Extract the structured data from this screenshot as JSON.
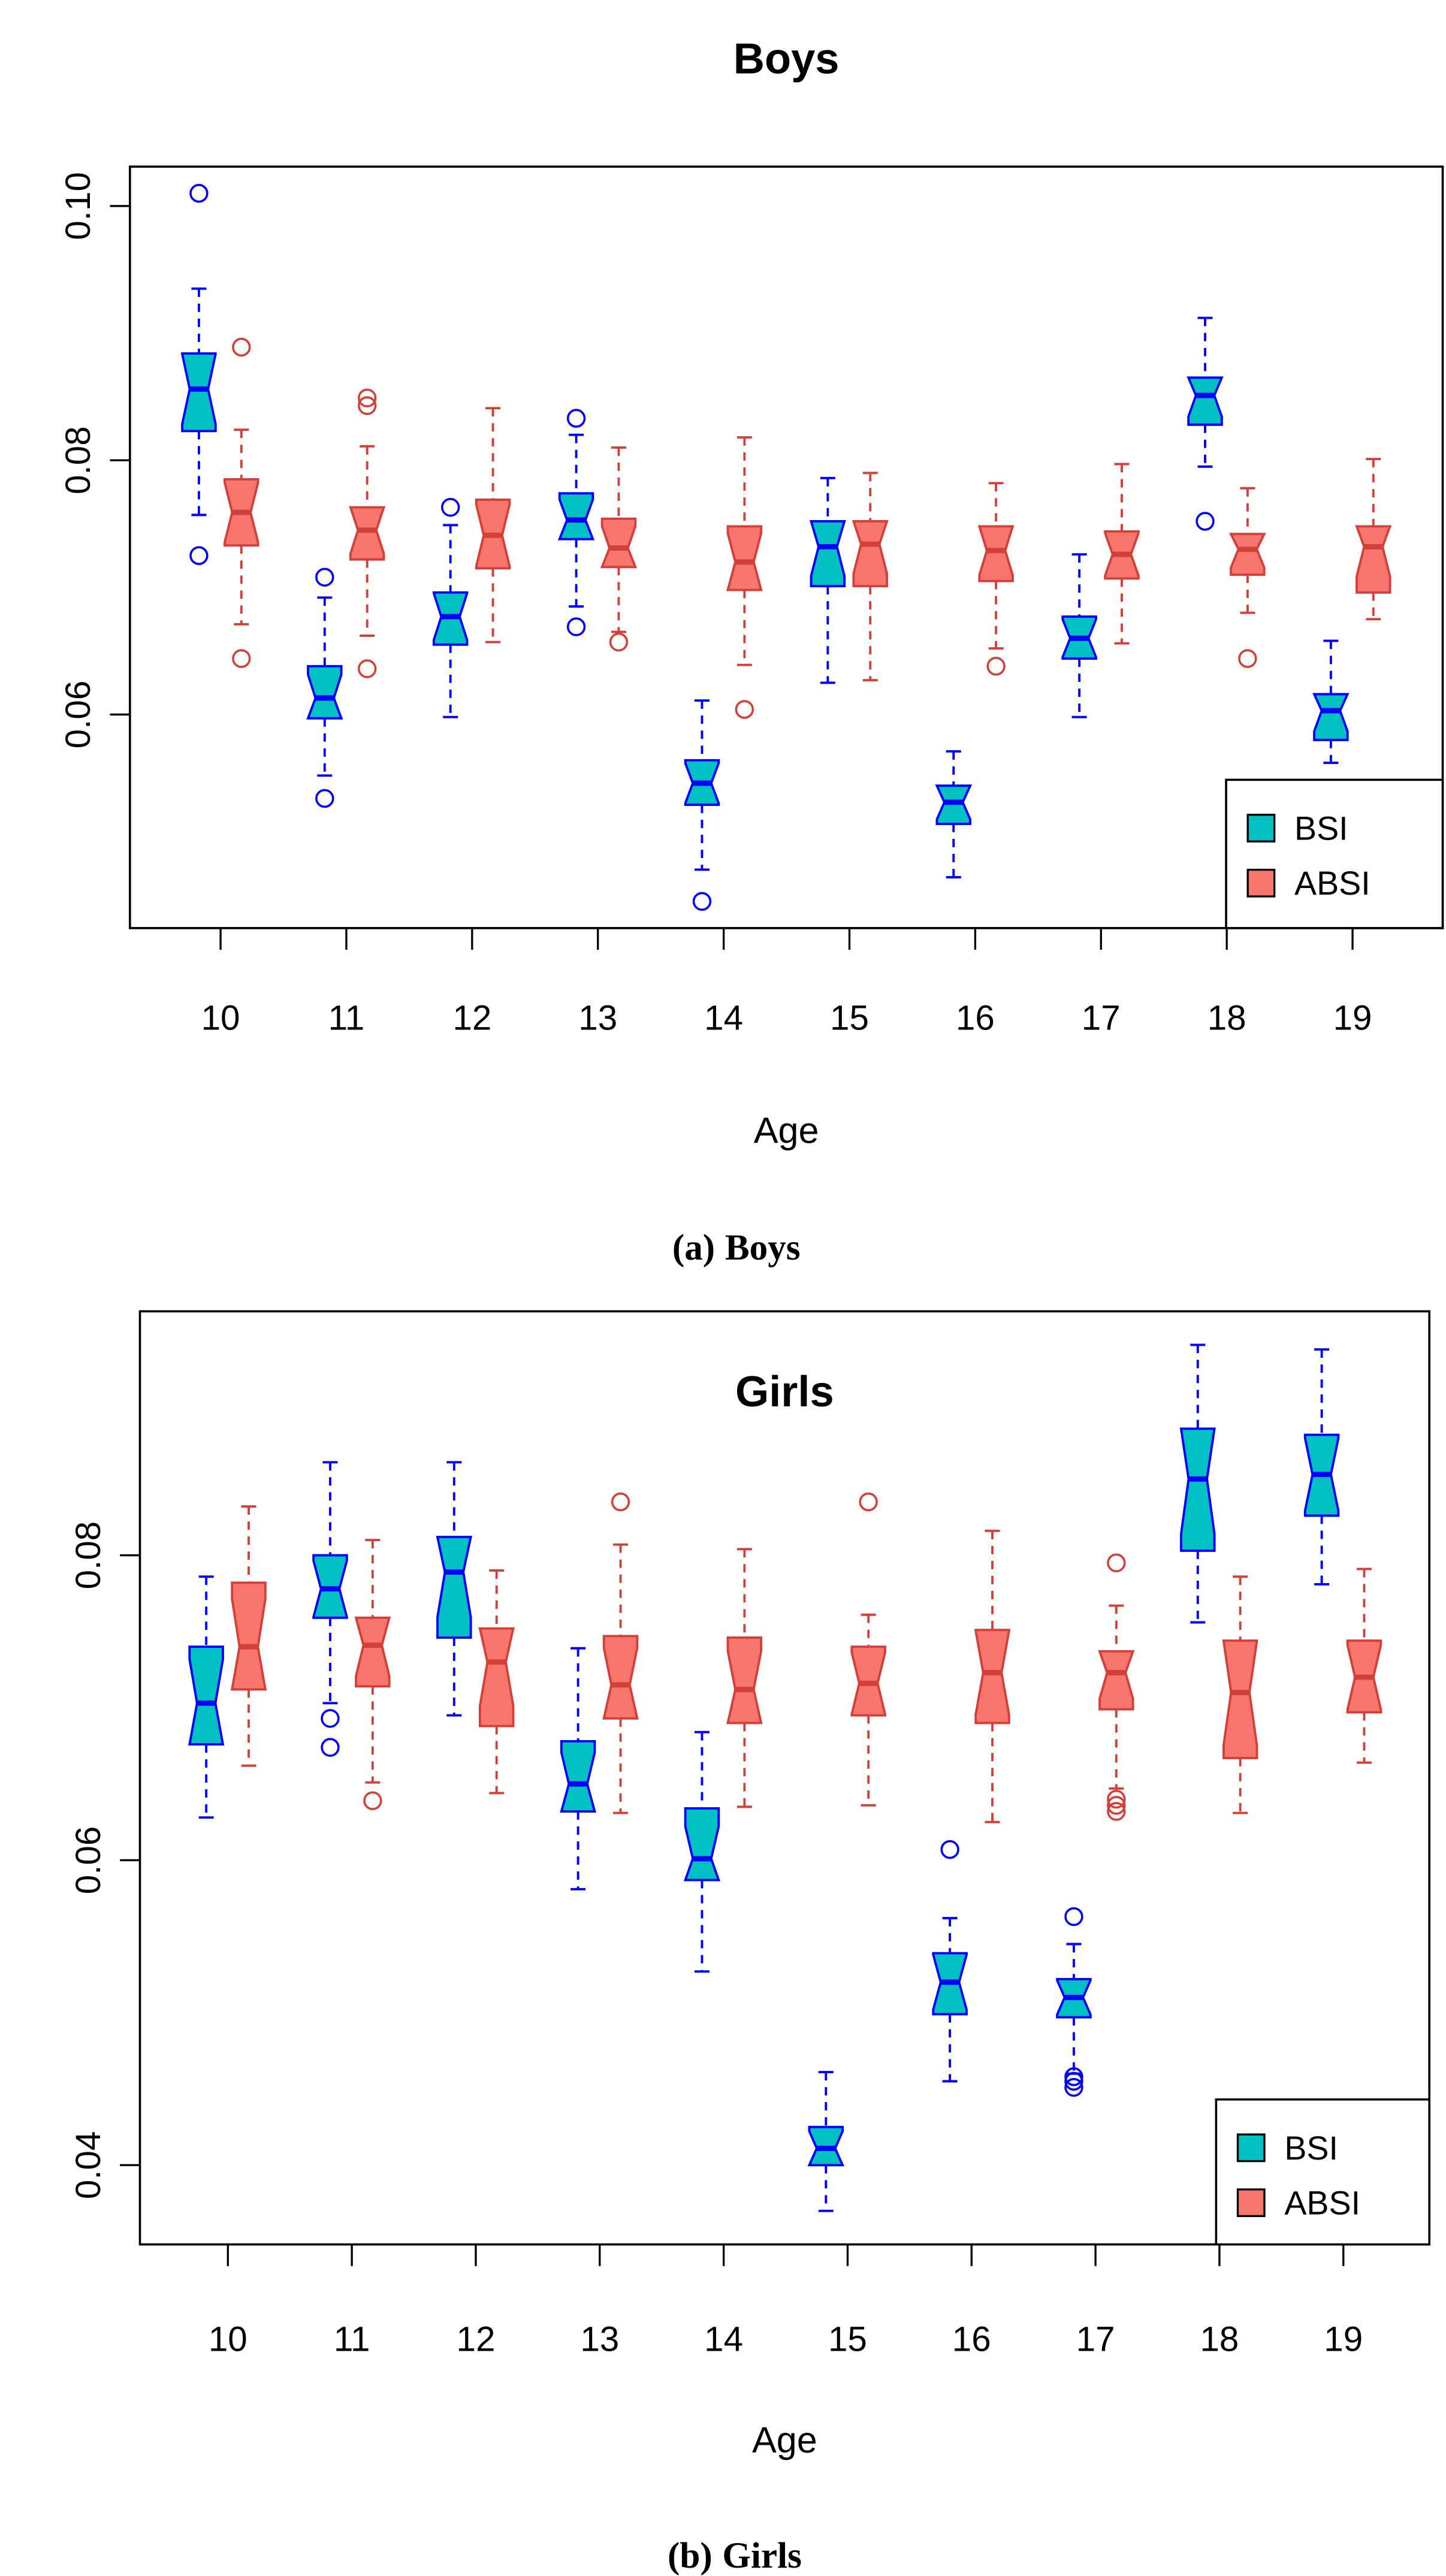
{
  "colors": {
    "bsi_fill": "#00C0C2",
    "bsi_line": "#0000FF",
    "absi_fill": "#F8766D",
    "absi_line": "#D2403A"
  },
  "chart_data": [
    {
      "type": "box",
      "title": "Boys",
      "caption_prefix": "(a)",
      "caption_text": "Boys",
      "xlabel": "Age",
      "ylabel": "",
      "ylim": [
        0.0432,
        0.1031
      ],
      "yticks": [
        "0.06",
        "0.08",
        "0.10"
      ],
      "categories": [
        "10",
        "11",
        "12",
        "13",
        "14",
        "15",
        "16",
        "17",
        "18",
        "19"
      ],
      "legend": {
        "position": "bottom-right",
        "entries": [
          "BSI",
          "ABSI"
        ]
      },
      "series": [
        {
          "name": "BSI",
          "boxes": [
            {
              "low": 0.0757,
              "q1": 0.0823,
              "median": 0.0856,
              "q3": 0.0884,
              "high": 0.0935,
              "outliers": [
                0.101,
                0.0725
              ]
            },
            {
              "low": 0.0552,
              "q1": 0.0597,
              "median": 0.0613,
              "q3": 0.0638,
              "high": 0.0692,
              "outliers": [
                0.0708,
                0.0534
              ]
            },
            {
              "low": 0.0598,
              "q1": 0.0655,
              "median": 0.0677,
              "q3": 0.0696,
              "high": 0.0749,
              "outliers": [
                0.0763
              ]
            },
            {
              "low": 0.0685,
              "q1": 0.0738,
              "median": 0.0753,
              "q3": 0.0774,
              "high": 0.082,
              "outliers": [
                0.0833,
                0.0669
              ]
            },
            {
              "low": 0.0478,
              "q1": 0.0529,
              "median": 0.0546,
              "q3": 0.0564,
              "high": 0.0611,
              "outliers": [
                0.0453
              ]
            },
            {
              "low": 0.0625,
              "q1": 0.0701,
              "median": 0.0732,
              "q3": 0.0752,
              "high": 0.0786,
              "outliers": []
            },
            {
              "low": 0.0472,
              "q1": 0.0514,
              "median": 0.0531,
              "q3": 0.0544,
              "high": 0.0571,
              "outliers": []
            },
            {
              "low": 0.0598,
              "q1": 0.0644,
              "median": 0.066,
              "q3": 0.0677,
              "high": 0.0726,
              "outliers": []
            },
            {
              "low": 0.0795,
              "q1": 0.0828,
              "median": 0.0851,
              "q3": 0.0865,
              "high": 0.0912,
              "outliers": [
                0.0752
              ]
            },
            {
              "low": 0.0562,
              "q1": 0.058,
              "median": 0.0603,
              "q3": 0.0616,
              "high": 0.0658,
              "outliers": []
            }
          ]
        },
        {
          "name": "ABSI",
          "boxes": [
            {
              "low": 0.0671,
              "q1": 0.0733,
              "median": 0.0759,
              "q3": 0.0785,
              "high": 0.0824,
              "outliers": [
                0.0889,
                0.0644
              ]
            },
            {
              "low": 0.0662,
              "q1": 0.0722,
              "median": 0.0745,
              "q3": 0.0763,
              "high": 0.0811,
              "outliers": [
                0.0849,
                0.0843,
                0.0636
              ]
            },
            {
              "low": 0.0657,
              "q1": 0.0715,
              "median": 0.0741,
              "q3": 0.0769,
              "high": 0.0841,
              "outliers": []
            },
            {
              "low": 0.0665,
              "q1": 0.0716,
              "median": 0.0731,
              "q3": 0.0754,
              "high": 0.081,
              "outliers": [
                0.0657
              ]
            },
            {
              "low": 0.0639,
              "q1": 0.0698,
              "median": 0.072,
              "q3": 0.0748,
              "high": 0.0818,
              "outliers": [
                0.0604
              ]
            },
            {
              "low": 0.0627,
              "q1": 0.0701,
              "median": 0.0734,
              "q3": 0.0752,
              "high": 0.079,
              "outliers": []
            },
            {
              "low": 0.0652,
              "q1": 0.0705,
              "median": 0.0729,
              "q3": 0.0748,
              "high": 0.0782,
              "outliers": [
                0.0638
              ]
            },
            {
              "low": 0.0656,
              "q1": 0.0707,
              "median": 0.0726,
              "q3": 0.0744,
              "high": 0.0797,
              "outliers": []
            },
            {
              "low": 0.068,
              "q1": 0.071,
              "median": 0.073,
              "q3": 0.0742,
              "high": 0.0778,
              "outliers": [
                0.0644
              ]
            },
            {
              "low": 0.0675,
              "q1": 0.0696,
              "median": 0.0732,
              "q3": 0.0748,
              "high": 0.0801,
              "outliers": []
            }
          ]
        }
      ]
    },
    {
      "type": "box",
      "title": "Girls",
      "caption_prefix": "(b)",
      "caption_text": "Girls",
      "xlabel": "Age",
      "ylabel": "",
      "ylim": [
        0.0348,
        0.096
      ],
      "yticks": [
        "0.04",
        "0.06",
        "0.08"
      ],
      "categories": [
        "10",
        "11",
        "12",
        "13",
        "14",
        "15",
        "16",
        "17",
        "18",
        "19"
      ],
      "legend": {
        "position": "bottom-right",
        "entries": [
          "BSI",
          "ABSI"
        ]
      },
      "series": [
        {
          "name": "BSI",
          "boxes": [
            {
              "low": 0.0628,
              "q1": 0.0676,
              "median": 0.0703,
              "q3": 0.074,
              "high": 0.0786,
              "outliers": []
            },
            {
              "low": 0.0703,
              "q1": 0.0759,
              "median": 0.0778,
              "q3": 0.08,
              "high": 0.0861,
              "outliers": [
                0.0693,
                0.0674
              ]
            },
            {
              "low": 0.0695,
              "q1": 0.0746,
              "median": 0.0789,
              "q3": 0.0812,
              "high": 0.0861,
              "outliers": []
            },
            {
              "low": 0.0581,
              "q1": 0.0632,
              "median": 0.065,
              "q3": 0.0678,
              "high": 0.0739,
              "outliers": []
            },
            {
              "low": 0.0527,
              "q1": 0.0587,
              "median": 0.0601,
              "q3": 0.0634,
              "high": 0.0684,
              "outliers": []
            },
            {
              "low": 0.037,
              "q1": 0.04,
              "median": 0.0411,
              "q3": 0.0425,
              "high": 0.0461,
              "outliers": []
            },
            {
              "low": 0.0455,
              "q1": 0.0499,
              "median": 0.052,
              "q3": 0.0539,
              "high": 0.0562,
              "outliers": [
                0.0607
              ]
            },
            {
              "low": 0.046,
              "q1": 0.0497,
              "median": 0.051,
              "q3": 0.0522,
              "high": 0.0545,
              "outliers": [
                0.0563,
                0.0458,
                0.0455,
                0.0451
              ]
            },
            {
              "low": 0.0756,
              "q1": 0.0803,
              "median": 0.085,
              "q3": 0.0883,
              "high": 0.0938,
              "outliers": []
            },
            {
              "low": 0.0781,
              "q1": 0.0826,
              "median": 0.0853,
              "q3": 0.0879,
              "high": 0.0935,
              "outliers": []
            }
          ]
        },
        {
          "name": "ABSI",
          "boxes": [
            {
              "low": 0.0662,
              "q1": 0.0712,
              "median": 0.074,
              "q3": 0.0782,
              "high": 0.0832,
              "outliers": []
            },
            {
              "low": 0.0651,
              "q1": 0.0714,
              "median": 0.0741,
              "q3": 0.0759,
              "high": 0.081,
              "outliers": [
                0.0639
              ]
            },
            {
              "low": 0.0644,
              "q1": 0.0688,
              "median": 0.073,
              "q3": 0.0752,
              "high": 0.079,
              "outliers": []
            },
            {
              "low": 0.0631,
              "q1": 0.0693,
              "median": 0.0715,
              "q3": 0.0747,
              "high": 0.0807,
              "outliers": [
                0.0835
              ]
            },
            {
              "low": 0.0635,
              "q1": 0.069,
              "median": 0.0712,
              "q3": 0.0746,
              "high": 0.0804,
              "outliers": []
            },
            {
              "low": 0.0636,
              "q1": 0.0695,
              "median": 0.0716,
              "q3": 0.074,
              "high": 0.0761,
              "outliers": [
                0.0835
              ]
            },
            {
              "low": 0.0625,
              "q1": 0.069,
              "median": 0.0723,
              "q3": 0.0751,
              "high": 0.0816,
              "outliers": []
            },
            {
              "low": 0.0647,
              "q1": 0.0699,
              "median": 0.0723,
              "q3": 0.0737,
              "high": 0.0767,
              "outliers": [
                0.0795,
                0.064,
                0.0636,
                0.0632
              ]
            },
            {
              "low": 0.0631,
              "q1": 0.0667,
              "median": 0.071,
              "q3": 0.0744,
              "high": 0.0786,
              "outliers": []
            },
            {
              "low": 0.0664,
              "q1": 0.0697,
              "median": 0.072,
              "q3": 0.0744,
              "high": 0.0791,
              "outliers": []
            }
          ]
        }
      ]
    }
  ]
}
